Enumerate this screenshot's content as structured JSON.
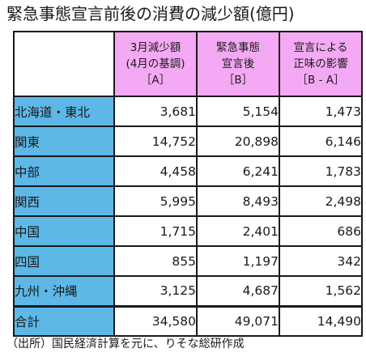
{
  "title": "緊急事態宣言前後の消費の減少額(億円)",
  "source": "（出所）国民経済計算を元に、りそな総研作成",
  "colors": {
    "header_bg": "#f4a9f4",
    "region_bg": "#5db8e8"
  },
  "chart_data": {
    "type": "table",
    "columns": [
      {
        "lines": [
          "3月減少額",
          "(4月の基調)",
          "［A］"
        ]
      },
      {
        "lines": [
          "緊急事態",
          "宣言後",
          "［B］"
        ]
      },
      {
        "lines": [
          "宣言による",
          "正味の影響",
          "［B - A］"
        ]
      }
    ],
    "rows": [
      {
        "label": "北海道・東北",
        "values": [
          "3,681",
          "5,154",
          "1,473"
        ]
      },
      {
        "label": "関東",
        "values": [
          "14,752",
          "20,898",
          "6,146"
        ]
      },
      {
        "label": "中部",
        "values": [
          "4,458",
          "6,241",
          "1,783"
        ]
      },
      {
        "label": "関西",
        "values": [
          "5,995",
          "8,493",
          "2,498"
        ]
      },
      {
        "label": "中国",
        "values": [
          "1,715",
          "2,401",
          "686"
        ]
      },
      {
        "label": "四国",
        "values": [
          "855",
          "1,197",
          "342"
        ]
      },
      {
        "label": "九州・沖縄",
        "values": [
          "3,125",
          "4,687",
          "1,562"
        ]
      },
      {
        "label": "合計",
        "values": [
          "34,580",
          "49,071",
          "14,490"
        ]
      }
    ]
  }
}
